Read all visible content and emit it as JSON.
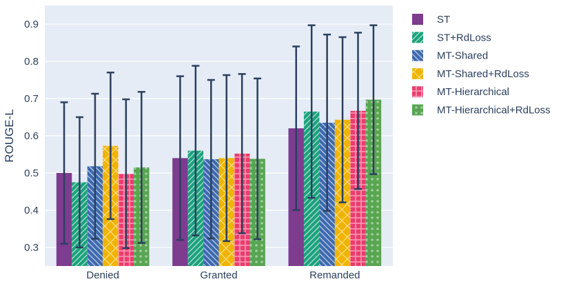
{
  "chart_data": {
    "type": "bar",
    "title": "",
    "xlabel": "",
    "ylabel": "ROUGE-L",
    "ylim": [
      0.25,
      0.95
    ],
    "yticks": [
      0.3,
      0.4,
      0.5,
      0.6,
      0.7,
      0.8,
      0.9
    ],
    "ytick_labels": [
      "0.3",
      "0.4",
      "0.5",
      "0.6",
      "0.7",
      "0.8",
      "0.9"
    ],
    "grid": true,
    "legend_position": "right",
    "categories": [
      "Denied",
      "Granted",
      "Remanded"
    ],
    "series": [
      {
        "name": "ST",
        "color": "#7e3c8f",
        "pattern": "none",
        "values": [
          0.5,
          0.54,
          0.62
        ],
        "error": [
          0.19,
          0.22,
          0.22
        ]
      },
      {
        "name": "ST+RdLoss",
        "color": "#1aa17b",
        "pattern": "diagonal",
        "values": [
          0.475,
          0.56,
          0.665
        ],
        "error": [
          0.175,
          0.228,
          0.232
        ]
      },
      {
        "name": "MT-Shared",
        "color": "#3c69af",
        "pattern": "backslash",
        "values": [
          0.518,
          0.537,
          0.635
        ],
        "error": [
          0.195,
          0.213,
          0.237
        ]
      },
      {
        "name": "MT-Shared+RdLoss",
        "color": "#f0b400",
        "pattern": "crosshatch",
        "values": [
          0.573,
          0.54,
          0.643
        ],
        "error": [
          0.197,
          0.223,
          0.222
        ]
      },
      {
        "name": "MT-Hierarchical",
        "color": "#ec3c6e",
        "pattern": "grid",
        "values": [
          0.498,
          0.552,
          0.667
        ],
        "error": [
          0.2,
          0.214,
          0.21
        ]
      },
      {
        "name": "MT-Hierarchical+RdLoss",
        "color": "#58a552",
        "pattern": "dots",
        "values": [
          0.515,
          0.538,
          0.697
        ],
        "error": [
          0.203,
          0.216,
          0.2
        ]
      }
    ]
  }
}
